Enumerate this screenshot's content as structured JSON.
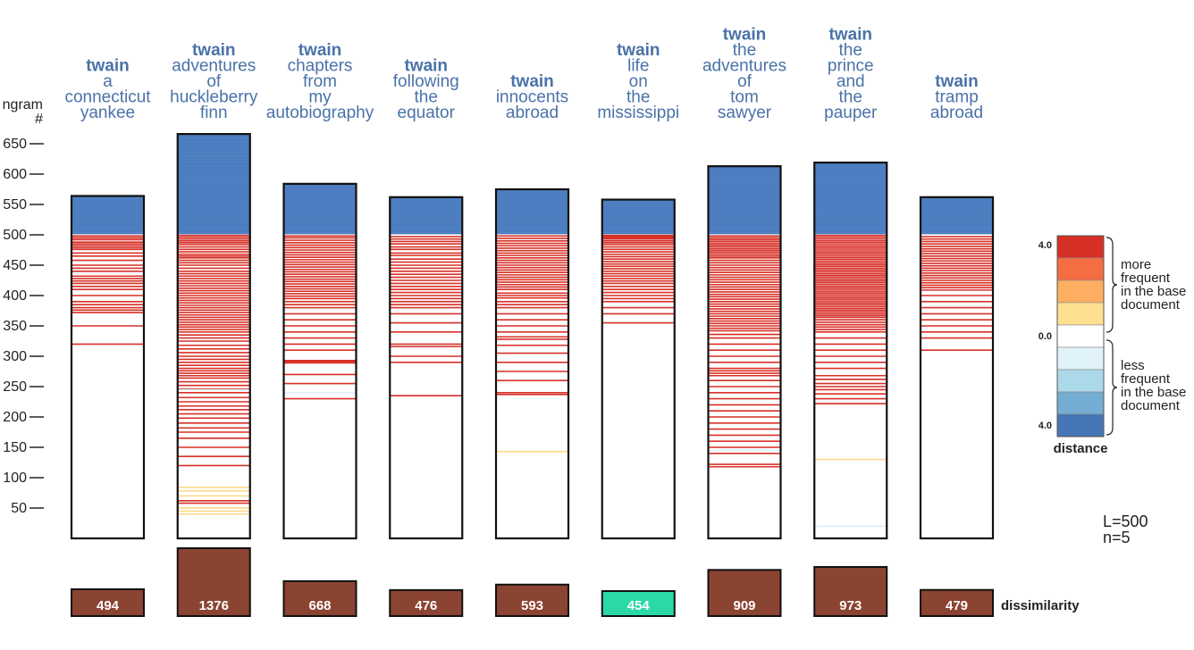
{
  "chart_data": {
    "type": "bar",
    "y_axis": {
      "label_lines": [
        "ngram",
        "#"
      ],
      "ticks": [
        50,
        100,
        150,
        200,
        250,
        300,
        350,
        400,
        450,
        500,
        550,
        600,
        650
      ],
      "range": [
        0,
        700
      ]
    },
    "L": 500,
    "n": 5,
    "L_label": "L=500",
    "n_label": "n=5",
    "dissimilarity_label": "dissimilarity",
    "colors": {
      "blue": "#4a7bbf",
      "red": "#d73027",
      "yellow": "#fdd57d",
      "lightblue": "#d9eef5",
      "score": "#8b4332",
      "score_min": "#2bd9a8",
      "title": "#4a72a8"
    },
    "books": [
      {
        "title_lines": [
          "twain",
          "a",
          "connecticut",
          "yankee"
        ],
        "ngram_count": 564,
        "dissimilarity": 494,
        "dissimilarity_label": "494",
        "red_ngrams": [
          498,
          495,
          492,
          488,
          485,
          482,
          479,
          476,
          470,
          465,
          458,
          450,
          445,
          440,
          432,
          428,
          424,
          420,
          415,
          410,
          400,
          390,
          385,
          380,
          376,
          372,
          350,
          320
        ],
        "yellow_ngrams": [],
        "lightblue_ngrams": []
      },
      {
        "title_lines": [
          "twain",
          "adventures",
          "of",
          "huckleberry",
          "finn"
        ],
        "ngram_count": 666,
        "dissimilarity": 1376,
        "dissimilarity_label": "1376",
        "red_ngrams": [
          499,
          496,
          493,
          490,
          487,
          484,
          480,
          476,
          472,
          468,
          465,
          462,
          458,
          454,
          450,
          445,
          440,
          436,
          432,
          428,
          424,
          420,
          416,
          412,
          408,
          404,
          400,
          396,
          392,
          388,
          384,
          380,
          376,
          372,
          368,
          364,
          360,
          356,
          352,
          348,
          344,
          340,
          335,
          330,
          325,
          318,
          312,
          306,
          300,
          295,
          290,
          285,
          280,
          276,
          272,
          268,
          264,
          258,
          252,
          246,
          240,
          232,
          225,
          218,
          212,
          205,
          198,
          190,
          182,
          175,
          165,
          150,
          135,
          120,
          62,
          58
        ],
        "yellow_ngrams": [
          84,
          78,
          70,
          50,
          45,
          40
        ],
        "lightblue_ngrams": [
          245
        ]
      },
      {
        "title_lines": [
          "twain",
          "chapters",
          "from",
          "my",
          "autobiography"
        ],
        "ngram_count": 584,
        "dissimilarity": 668,
        "dissimilarity_label": "668",
        "red_ngrams": [
          498,
          495,
          491,
          487,
          483,
          479,
          475,
          471,
          467,
          463,
          459,
          455,
          451,
          447,
          443,
          439,
          435,
          431,
          427,
          423,
          419,
          415,
          411,
          407,
          403,
          399,
          395,
          390,
          385,
          380,
          370,
          360,
          350,
          340,
          330,
          320,
          310,
          293,
          291,
          289,
          270,
          255,
          230
        ],
        "yellow_ngrams": [],
        "lightblue_ngrams": [
          240
        ]
      },
      {
        "title_lines": [
          "twain",
          "following",
          "the",
          "equator"
        ],
        "ngram_count": 562,
        "dissimilarity": 476,
        "dissimilarity_label": "476",
        "red_ngrams": [
          497,
          493,
          489,
          485,
          480,
          476,
          470,
          466,
          460,
          455,
          450,
          445,
          440,
          435,
          430,
          425,
          420,
          415,
          410,
          405,
          400,
          395,
          390,
          385,
          380,
          370,
          355,
          340,
          320,
          316,
          300,
          290,
          235
        ],
        "yellow_ngrams": [],
        "lightblue_ngrams": []
      },
      {
        "title_lines": [
          "twain",
          "innocents",
          "abroad"
        ],
        "ngram_count": 575,
        "dissimilarity": 593,
        "dissimilarity_label": "593",
        "red_ngrams": [
          498,
          494,
          490,
          486,
          482,
          478,
          474,
          470,
          466,
          462,
          458,
          454,
          450,
          446,
          442,
          438,
          434,
          430,
          426,
          422,
          418,
          414,
          410,
          404,
          400,
          396,
          390,
          385,
          380,
          370,
          360,
          350,
          340,
          332,
          328,
          318,
          305,
          290,
          275,
          260,
          240,
          237
        ],
        "yellow_ngrams": [
          143
        ],
        "lightblue_ngrams": []
      },
      {
        "title_lines": [
          "twain",
          "life",
          "on",
          "the",
          "mississippi"
        ],
        "ngram_count": 558,
        "dissimilarity": 454,
        "dissimilarity_label": "454",
        "red_ngrams": [
          499,
          497,
          495,
          493,
          490,
          487,
          484,
          480,
          476,
          472,
          468,
          464,
          460,
          456,
          452,
          448,
          444,
          440,
          436,
          432,
          428,
          424,
          420,
          415,
          410,
          405,
          400,
          395,
          390,
          380,
          370,
          355
        ],
        "yellow_ngrams": [],
        "lightblue_ngrams": []
      },
      {
        "title_lines": [
          "twain",
          "the",
          "adventures",
          "of",
          "tom",
          "sawyer"
        ],
        "ngram_count": 613,
        "dissimilarity": 909,
        "dissimilarity_label": "909",
        "red_ngrams": [
          498,
          495,
          492,
          489,
          486,
          483,
          480,
          477,
          474,
          471,
          468,
          465,
          462,
          458,
          454,
          450,
          446,
          442,
          438,
          434,
          430,
          426,
          422,
          418,
          414,
          410,
          406,
          402,
          398,
          394,
          390,
          386,
          382,
          378,
          374,
          370,
          366,
          362,
          358,
          354,
          350,
          346,
          342,
          336,
          330,
          320,
          310,
          300,
          290,
          280,
          276,
          272,
          268,
          260,
          250,
          240,
          230,
          220,
          210,
          200,
          190,
          180,
          170,
          160,
          150,
          140,
          122,
          118
        ],
        "yellow_ngrams": [],
        "lightblue_ngrams": [
          145
        ]
      },
      {
        "title_lines": [
          "twain",
          "the",
          "prince",
          "and",
          "the",
          "pauper"
        ],
        "ngram_count": 619,
        "dissimilarity": 973,
        "dissimilarity_label": "973",
        "red_ngrams": [
          499,
          496,
          493,
          490,
          487,
          484,
          481,
          478,
          475,
          472,
          469,
          466,
          463,
          460,
          457,
          454,
          451,
          448,
          445,
          442,
          439,
          436,
          433,
          430,
          427,
          424,
          421,
          418,
          415,
          412,
          409,
          406,
          403,
          400,
          397,
          394,
          391,
          388,
          385,
          382,
          379,
          376,
          373,
          370,
          367,
          364,
          360,
          356,
          352,
          348,
          344,
          340,
          330,
          320,
          310,
          300,
          290,
          280,
          268,
          262,
          255,
          250,
          245,
          238,
          230,
          222
        ],
        "yellow_ngrams": [
          130
        ],
        "lightblue_ngrams": [
          20
        ]
      },
      {
        "title_lines": [
          "twain",
          "tramp",
          "abroad"
        ],
        "ngram_count": 562,
        "dissimilarity": 479,
        "dissimilarity_label": "479",
        "red_ngrams": [
          497,
          493,
          489,
          485,
          481,
          477,
          473,
          469,
          465,
          461,
          457,
          453,
          449,
          445,
          441,
          437,
          433,
          429,
          425,
          421,
          417,
          413,
          409,
          400,
          390,
          380,
          370,
          360,
          350,
          340,
          330,
          310
        ],
        "yellow_ngrams": [],
        "lightblue_ngrams": []
      }
    ],
    "legend": {
      "title": "distance",
      "top_value": "4.0",
      "mid_value": "0.0",
      "bottom_value": "4.0",
      "colors": [
        "#d73027",
        "#f46d43",
        "#fdae61",
        "#fee090",
        "#ffffff",
        "#e0f3f8",
        "#abd9e9",
        "#74add1",
        "#4575b4"
      ],
      "upper_text": [
        "more",
        "frequent",
        "in the base",
        "document"
      ],
      "lower_text": [
        "less",
        "frequent",
        "in the base",
        "document"
      ]
    }
  }
}
